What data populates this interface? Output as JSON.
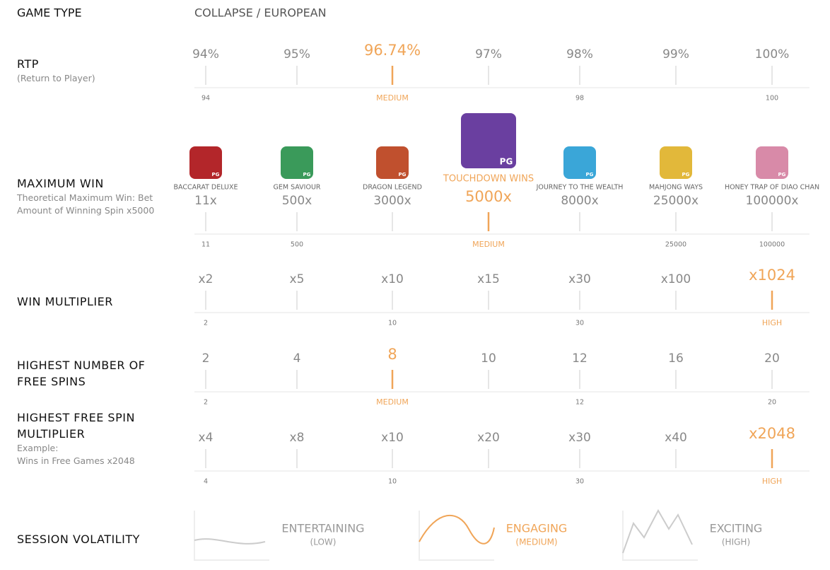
{
  "game_type": {
    "label": "GAME TYPE",
    "value": "COLLAPSE / EUROPEAN"
  },
  "accent_color": "#f0a558",
  "rows": [
    {
      "label": "RTP",
      "sublabel": [
        "(Return to Player)"
      ],
      "items": [
        "94%",
        "95%",
        "96.74%",
        "97%",
        "98%",
        "99%",
        "100%"
      ],
      "highlight": 2,
      "foot": [
        "94",
        null,
        "MEDIUM",
        null,
        "98",
        null,
        "100"
      ]
    },
    {
      "label": "MAXIMUM WIN",
      "sublabel": [
        "Theoretical Maximum Win: Bet Amount of Winning Spin x5000"
      ],
      "badge": "PG",
      "games": [
        {
          "name": "BACCARAT DELUXE",
          "value": "11x",
          "color": "#b3262a"
        },
        {
          "name": "GEM SAVIOUR",
          "value": "500x",
          "color": "#3a9a5a"
        },
        {
          "name": "DRAGON LEGEND",
          "value": "3000x",
          "color": "#c0502e"
        },
        {
          "name": "TOUCHDOWN WINS",
          "value": "5000x",
          "color": "#6a3fa0"
        },
        {
          "name": "JOURNEY TO THE WEALTH",
          "value": "8000x",
          "color": "#3aa6d8"
        },
        {
          "name": "MAHJONG WAYS",
          "value": "25000x",
          "color": "#e2b83a"
        },
        {
          "name": "HONEY TRAP OF DIAO CHAN",
          "value": "100000x",
          "color": "#d88aa8"
        }
      ],
      "highlight": 3,
      "foot": [
        "11",
        "500",
        null,
        "MEDIUM",
        null,
        "25000",
        "100000"
      ]
    },
    {
      "label": "WIN MULTIPLIER",
      "sublabel": [],
      "items": [
        "x2",
        "x5",
        "x10",
        "x15",
        "x30",
        "x100",
        "x1024"
      ],
      "highlight": 6,
      "foot": [
        "2",
        null,
        "10",
        null,
        "30",
        null,
        "HIGH"
      ]
    },
    {
      "label": "HIGHEST NUMBER OF FREE SPINS",
      "sublabel": [],
      "items": [
        "2",
        "4",
        "8",
        "10",
        "12",
        "16",
        "20"
      ],
      "highlight": 2,
      "foot": [
        "2",
        null,
        "MEDIUM",
        null,
        "12",
        null,
        "20"
      ]
    },
    {
      "label": "HIGHEST FREE SPIN MULTIPLIER",
      "sublabel": [
        "Example:",
        "Wins in Free Games x2048"
      ],
      "items": [
        "x4",
        "x8",
        "x10",
        "x20",
        "x30",
        "x40",
        "x2048"
      ],
      "highlight": 6,
      "foot": [
        "4",
        null,
        "10",
        null,
        "30",
        null,
        "HIGH"
      ]
    }
  ],
  "volatility": {
    "label": "SESSION VOLATILITY",
    "highlight": 1,
    "levels": [
      {
        "title": "ENTERTAINING",
        "sub": "(LOW)"
      },
      {
        "title": "ENGAGING",
        "sub": "(MEDIUM)"
      },
      {
        "title": "EXCITING",
        "sub": "(HIGH)"
      }
    ]
  }
}
